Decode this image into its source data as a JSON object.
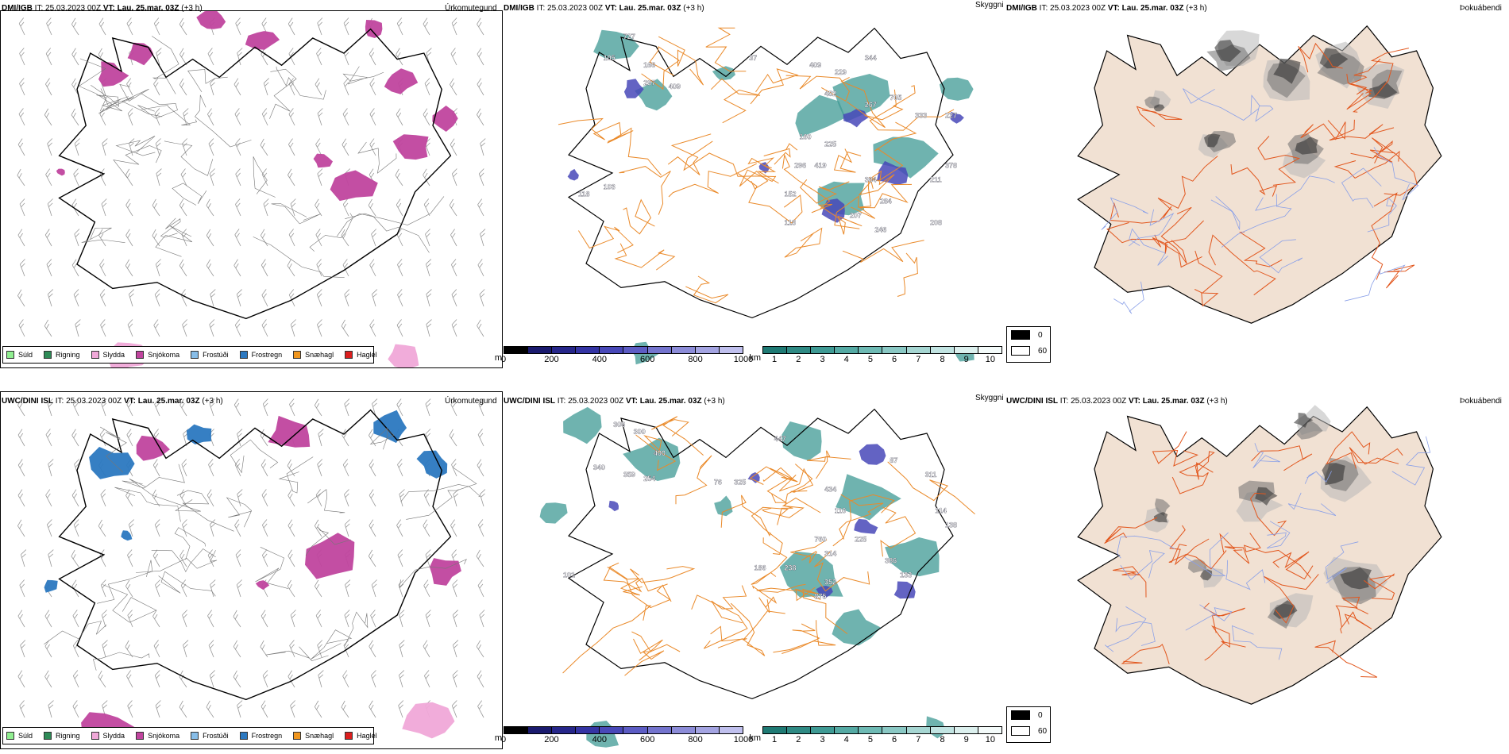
{
  "rows": [
    {
      "model": "DMI/IGB",
      "it_label": "IT: 25.03.2023 00Z",
      "vt_label": "VT: Lau. 25.mar. 03Z",
      "step_label": "(+3 h)"
    },
    {
      "model": "UWC/DINI ISL",
      "it_label": "IT: 25.03.2023 00Z",
      "vt_label": "VT: Lau. 25.mar. 03Z",
      "step_label": "(+3 h)"
    }
  ],
  "panels": {
    "precip_type": {
      "variable": "Úrkomutegund",
      "legend": [
        {
          "label": "Súld",
          "color": "#90ee90"
        },
        {
          "label": "Rigning",
          "color": "#2e8b57"
        },
        {
          "label": "Slydda",
          "color": "#f0a8d8"
        },
        {
          "label": "Snjókoma",
          "color": "#c0449e"
        },
        {
          "label": "Frostúði",
          "color": "#87bde8"
        },
        {
          "label": "Frostregn",
          "color": "#2b78c0"
        },
        {
          "label": "Snæhagl",
          "color": "#f0961e"
        },
        {
          "label": "Haglél",
          "color": "#dc1e1e"
        }
      ]
    },
    "visibility": {
      "variable": "Skyggni",
      "low_colorbar": {
        "unit": "m",
        "ticks": [
          "0",
          "200",
          "400",
          "600",
          "800",
          "1000"
        ],
        "colors": [
          "#000000",
          "#1a1a6e",
          "#26268a",
          "#3434a4",
          "#4848b8",
          "#5c5cc4",
          "#7474ce",
          "#8c8cd8",
          "#a4a4e2",
          "#c0c0ee"
        ]
      },
      "high_colorbar": {
        "unit": "km",
        "ticks": [
          "1",
          "2",
          "3",
          "4",
          "5",
          "6",
          "7",
          "8",
          "9",
          "10"
        ],
        "colors": [
          "#1f7a74",
          "#2f8a84",
          "#3f9a94",
          "#55aaa4",
          "#6ebab4",
          "#8ac8c4",
          "#a6d6d2",
          "#c2e4e2",
          "#dcf0ee",
          "#f4fbfa"
        ]
      },
      "number_labels": [
        [
          "727",
          "105",
          "166",
          "297",
          "409",
          "37",
          "409",
          "229",
          "344",
          "482",
          "267",
          "765",
          "333",
          "227",
          "419",
          "384",
          "284",
          "207",
          "246",
          "211",
          "378",
          "208",
          "152",
          "118",
          "103",
          "160",
          "225",
          "296",
          "118",
          "745"
        ],
        [
          "306",
          "300",
          "340",
          "359",
          "400",
          "254",
          "325",
          "447",
          "87",
          "434",
          "110",
          "760",
          "314",
          "225",
          "238",
          "352",
          "875",
          "386",
          "133",
          "186",
          "101",
          "76",
          "311",
          "114",
          "138"
        ]
      ]
    },
    "cloud": {
      "variable": "Þokuábendi",
      "legend": [
        {
          "label": "0",
          "color": "#000000"
        },
        {
          "label": "60",
          "color": "#ffffff"
        }
      ]
    }
  }
}
